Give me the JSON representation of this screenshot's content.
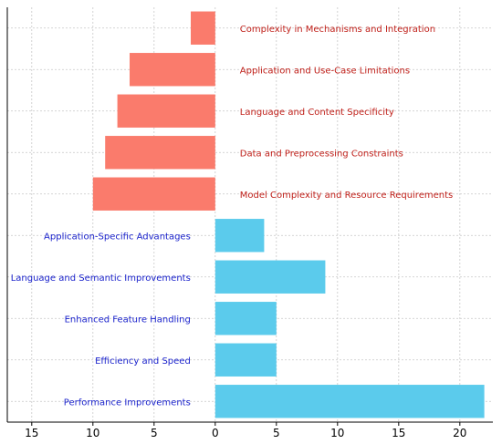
{
  "chart_data": {
    "type": "bar",
    "orientation": "horizontal-diverging",
    "categories": [
      "Complexity in Mechanisms and Integration",
      "Application and Use-Case Limitations",
      "Language and Content Specificity",
      "Data and Preprocessing Constraints",
      "Model Complexity and Resource Requirements",
      "Application-Specific Advantages",
      "Language and Semantic Improvements",
      "Enhanced Feature Handling",
      "Efficiency and Speed",
      "Performance Improvements"
    ],
    "series": [
      {
        "values": [
          -2,
          -7,
          -8,
          -9,
          -10,
          null,
          null,
          null,
          null,
          null
        ],
        "color": "#fa7b6c",
        "label_color": "#c0201a",
        "label_side": "right"
      },
      {
        "values": [
          null,
          null,
          null,
          null,
          null,
          4,
          9,
          5,
          5,
          22
        ],
        "color": "#5bcbec",
        "label_color": "#1a22cc",
        "label_side": "left"
      }
    ],
    "xlim": [
      -17,
      22.7
    ],
    "xticks": [
      -15,
      -10,
      -5,
      0,
      5,
      10,
      15,
      20
    ],
    "xtick_labels": [
      "15",
      "10",
      "5",
      "0",
      "5",
      "10",
      "15",
      "20"
    ],
    "grid": true,
    "title": "",
    "xlabel": "",
    "ylabel": ""
  }
}
